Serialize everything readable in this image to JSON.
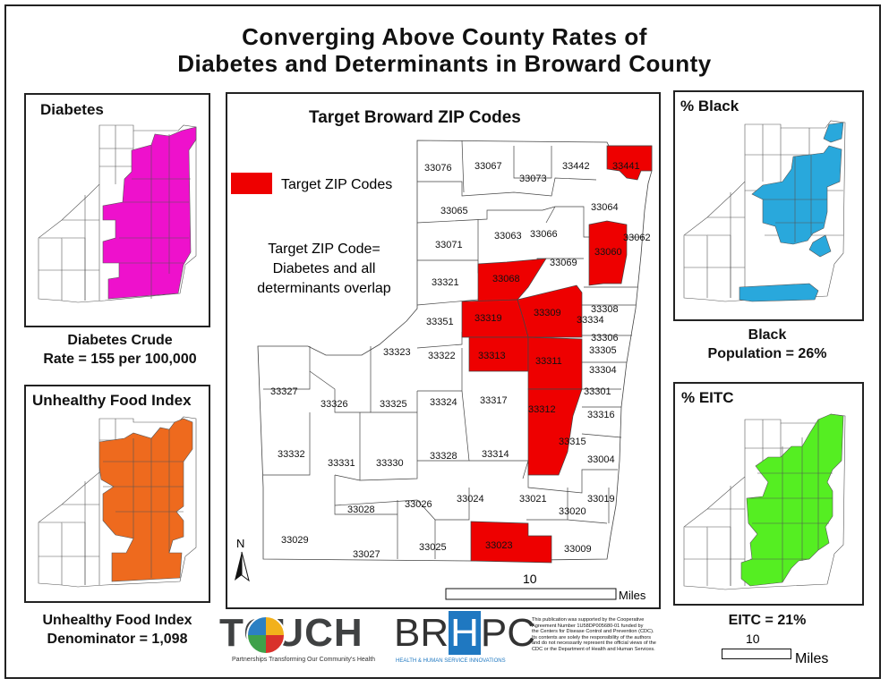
{
  "title": {
    "line1": "Converging Above County Rates of",
    "line2": "Diabetes and Determinants in Broward County"
  },
  "colors": {
    "target": "#ee0000",
    "diabetes": "#ee11cc",
    "food": "#ee6a1e",
    "black": "#29a8dc",
    "eitc": "#55ee22"
  },
  "main_map": {
    "title": "Target Broward ZIP Codes",
    "legend_label": "Target ZIP Codes",
    "note_line1": "Target ZIP Code=",
    "note_line2": "Diabetes and all",
    "note_line3": "determinants overlap",
    "north_label": "N",
    "scale_value": "10",
    "scale_unit": "Miles",
    "zips": [
      "33076",
      "33067",
      "33073",
      "33442",
      "33441",
      "33065",
      "33064",
      "33071",
      "33063",
      "33066",
      "33062",
      "33069",
      "33060",
      "33321",
      "33068",
      "33351",
      "33319",
      "33309",
      "33334",
      "33308",
      "33306",
      "33305",
      "33304",
      "33323",
      "33322",
      "33313",
      "33311",
      "33301",
      "33316",
      "33327",
      "33326",
      "33325",
      "33324",
      "33317",
      "33312",
      "33315",
      "33004",
      "33332",
      "33331",
      "33330",
      "33328",
      "33314",
      "33028",
      "33026",
      "33024",
      "33021",
      "33019",
      "33020",
      "33029",
      "33027",
      "33025",
      "33023",
      "33009"
    ],
    "target_zips": [
      "33441",
      "33060",
      "33068",
      "33319",
      "33309",
      "33313",
      "33311",
      "33312",
      "33023"
    ]
  },
  "panels": {
    "diabetes": {
      "title": "Diabetes",
      "caption_line1": "Diabetes Crude",
      "caption_line2": "Rate = 155 per 100,000"
    },
    "food": {
      "title": "Unhealthy Food Index",
      "caption_line1": "Unhealthy Food Index",
      "caption_line2": "Denominator = 1,098"
    },
    "black": {
      "title": "% Black",
      "caption_line1": "Black",
      "caption_line2": "Population = 26%"
    },
    "eitc": {
      "title": "% EITC",
      "caption_line1": "EITC = 21%",
      "scale_value": "10",
      "scale_unit": "Miles"
    }
  },
  "logos": {
    "touch_text": "TOUCH",
    "touch_tagline": "Partnerships Transforming Our Community's Health",
    "brhpc_text_left": "BR",
    "brhpc_text_mid": "H",
    "brhpc_text_right": "PC",
    "brhpc_tagline": "HEALTH & HUMAN SERVICE INNOVATIONS"
  },
  "disclaimer": [
    "This publication was supported by the Cooperative",
    "Agreement Number 1U58DP005680-01 funded by",
    "the Centers for Disease Control and Prevention (CDC).",
    "Its contents are solely the responsibility of the authors",
    "and do not necessarily represent the official views of the",
    "CDC or the Department of Health and Human Services."
  ]
}
